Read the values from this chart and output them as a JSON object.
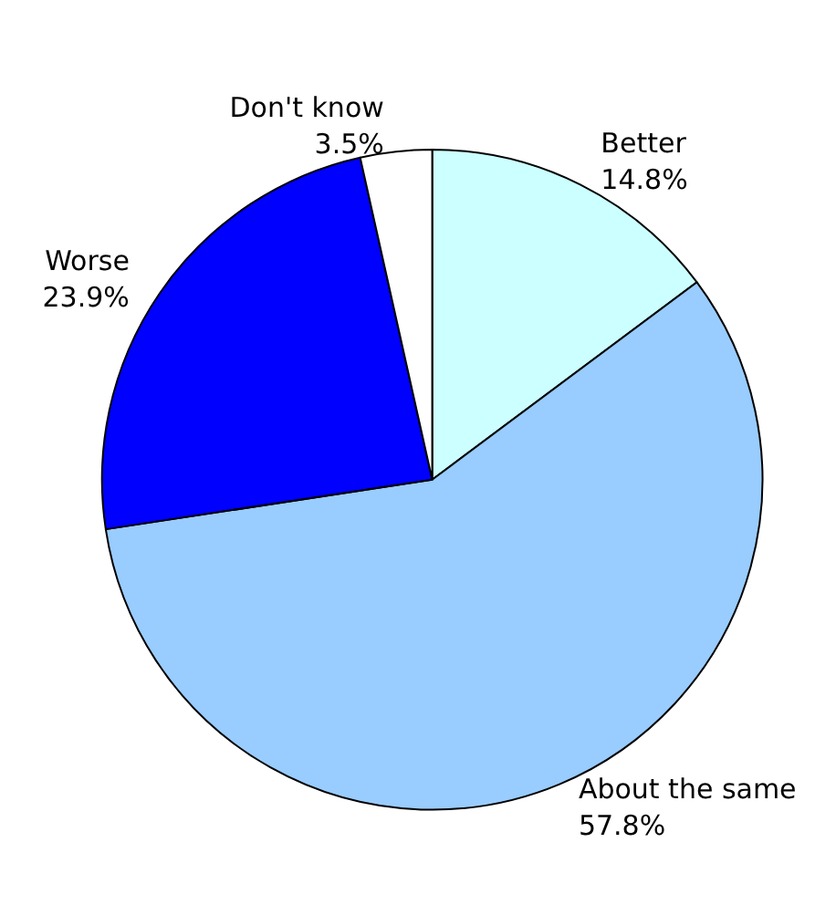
{
  "chart_data": {
    "type": "pie",
    "categories": [
      "Better",
      "About the same",
      "Worse",
      "Don't know"
    ],
    "values": [
      14.8,
      57.8,
      23.9,
      3.5
    ],
    "value_labels": [
      "14.8%",
      "57.8%",
      "23.9%",
      "3.5%"
    ],
    "colors": [
      "#ccffff",
      "#99ccff",
      "#0000ff",
      "#ffffff"
    ]
  }
}
